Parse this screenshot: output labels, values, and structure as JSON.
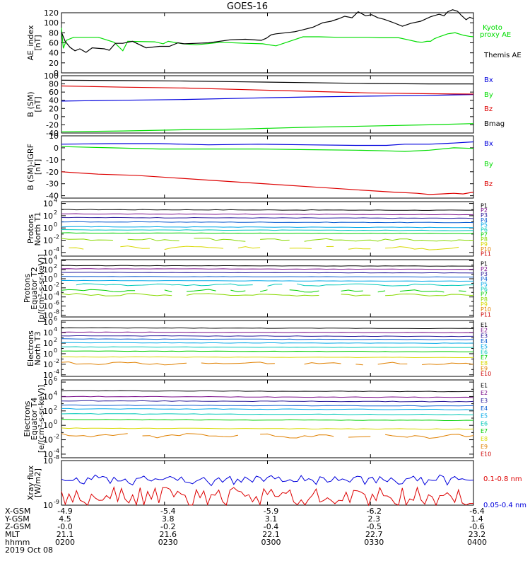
{
  "title": "GOES-16",
  "date_label": "2019 Oct 08",
  "footer": {
    "row_labels": [
      "X-GSM",
      "Y-GSM",
      "Z-GSM",
      "MLT",
      "hhmm"
    ],
    "columns": [
      [
        "-4.9",
        "4.5",
        "-0.0",
        "21.1",
        "0200"
      ],
      [
        "-5.4",
        "3.8",
        "-0.2",
        "21.6",
        "0230"
      ],
      [
        "-5.9",
        "3.1",
        "-0.4",
        "22.1",
        "0300"
      ],
      [
        "-6.2",
        "2.3",
        "-0.5",
        "22.7",
        "0330"
      ],
      [
        "-6.4",
        "1.4",
        "-0.6",
        "23.2",
        "0400"
      ]
    ]
  },
  "colors": {
    "black": "#000000",
    "green": "#00dd00",
    "blue": "#0000dd",
    "red": "#dd0000",
    "P": [
      "#000000",
      "#7a0d8a",
      "#2a1a9a",
      "#0a5cd0",
      "#00a8e8",
      "#00c8b8",
      "#00d000",
      "#88d800",
      "#d8d800",
      "#e08000",
      "#cc0000"
    ],
    "E": [
      "#000000",
      "#7a0d8a",
      "#2a1a9a",
      "#0a5cd0",
      "#00a8e8",
      "#00c8b8",
      "#00d000",
      "#d8d800",
      "#e08000",
      "#cc0000"
    ]
  },
  "chart_data": [
    {
      "type": "line",
      "ylabel": "AE_index [nT]",
      "ylim": [
        0,
        120
      ],
      "yticks": [
        "0",
        "20",
        "40",
        "60",
        "80",
        "100",
        "120"
      ],
      "x": [
        "0200",
        "0230",
        "0300",
        "0330",
        "0400"
      ],
      "series": [
        {
          "name": "Kyoto proxy AE",
          "color": "#00dd00",
          "values": [
            [
              0,
              90
            ],
            [
              3,
              49
            ],
            [
              8,
              65
            ],
            [
              20,
              71
            ],
            [
              60,
              71
            ],
            [
              86,
              61
            ],
            [
              100,
              44
            ],
            [
              108,
              63
            ],
            [
              152,
              62
            ],
            [
              166,
              58
            ],
            [
              174,
              63
            ],
            [
              198,
              58
            ],
            [
              220,
              56
            ],
            [
              260,
              61
            ],
            [
              300,
              59
            ],
            [
              328,
              58
            ],
            [
              350,
              54
            ],
            [
              372,
              63
            ],
            [
              394,
              72
            ],
            [
              420,
              72
            ],
            [
              450,
              71
            ],
            [
              500,
              71
            ],
            [
              520,
              70
            ],
            [
              550,
              70
            ],
            [
              565,
              66
            ],
            [
              580,
              62
            ],
            [
              588,
              61
            ],
            [
              596,
              63
            ],
            [
              602,
              63
            ],
            [
              608,
              68
            ],
            [
              616,
              72
            ],
            [
              630,
              78
            ],
            [
              642,
              80
            ],
            [
              656,
              75
            ],
            [
              665,
              73
            ],
            [
              672,
              72
            ]
          ]
        },
        {
          "name": "Themis AE",
          "color": "#000000",
          "values": [
            [
              0,
              81
            ],
            [
              6,
              63
            ],
            [
              14,
              51
            ],
            [
              22,
              44
            ],
            [
              30,
              48
            ],
            [
              40,
              41
            ],
            [
              50,
              50
            ],
            [
              70,
              48
            ],
            [
              78,
              45
            ],
            [
              88,
              59
            ],
            [
              100,
              59
            ],
            [
              116,
              63
            ],
            [
              138,
              50
            ],
            [
              160,
              53
            ],
            [
              176,
              53
            ],
            [
              190,
              60
            ],
            [
              200,
              58
            ],
            [
              220,
              59
            ],
            [
              240,
              60
            ],
            [
              258,
              63
            ],
            [
              276,
              66
            ],
            [
              300,
              67
            ],
            [
              326,
              65
            ],
            [
              334,
              69
            ],
            [
              342,
              76
            ],
            [
              350,
              78
            ],
            [
              366,
              80
            ],
            [
              380,
              82
            ],
            [
              394,
              86
            ],
            [
              410,
              91
            ],
            [
              426,
              100
            ],
            [
              440,
              103
            ],
            [
              452,
              108
            ],
            [
              462,
              113
            ],
            [
              474,
              110
            ],
            [
              484,
              122
            ],
            [
              496,
              114
            ],
            [
              506,
              116
            ],
            [
              516,
              110
            ],
            [
              526,
              107
            ],
            [
              540,
              101
            ],
            [
              556,
              93
            ],
            [
              570,
              99
            ],
            [
              586,
              103
            ],
            [
              602,
              112
            ],
            [
              616,
              117
            ],
            [
              624,
              114
            ],
            [
              630,
              122
            ],
            [
              638,
              126
            ],
            [
              646,
              123
            ],
            [
              652,
              115
            ],
            [
              660,
              106
            ],
            [
              666,
              111
            ],
            [
              672,
              108
            ]
          ]
        }
      ]
    },
    {
      "type": "line",
      "ylabel": "B (SM) [nT]",
      "ylim": [
        -40,
        100
      ],
      "yticks": [
        "-40",
        "-20",
        "0",
        "20",
        "40",
        "60",
        "80",
        "100"
      ],
      "series": [
        {
          "name": "Bx",
          "color": "#0000dd",
          "values": [
            [
              0,
              38
            ],
            [
              100,
              40
            ],
            [
              200,
              42
            ],
            [
              300,
              45
            ],
            [
              400,
              48
            ],
            [
              500,
              50
            ],
            [
              600,
              52
            ],
            [
              672,
              54
            ]
          ]
        },
        {
          "name": "By",
          "color": "#00dd00",
          "values": [
            [
              0,
              -37
            ],
            [
              100,
              -35
            ],
            [
              200,
              -32
            ],
            [
              300,
              -30
            ],
            [
              400,
              -26
            ],
            [
              500,
              -23
            ],
            [
              600,
              -20
            ],
            [
              672,
              -17
            ]
          ]
        },
        {
          "name": "Bz",
          "color": "#dd0000",
          "values": [
            [
              0,
              75
            ],
            [
              100,
              72
            ],
            [
              200,
              70
            ],
            [
              300,
              66
            ],
            [
              400,
              62
            ],
            [
              500,
              58
            ],
            [
              600,
              56
            ],
            [
              672,
              55
            ]
          ]
        },
        {
          "name": "Bmag",
          "color": "#000000",
          "values": [
            [
              0,
              89
            ],
            [
              100,
              88
            ],
            [
              200,
              87
            ],
            [
              300,
              85
            ],
            [
              400,
              83
            ],
            [
              500,
              81
            ],
            [
              600,
              80
            ],
            [
              672,
              80
            ]
          ]
        }
      ]
    },
    {
      "type": "line",
      "ylabel": "B (SM)-IGRF [nT]",
      "ylim": [
        -42,
        10
      ],
      "yticks": [
        "-40",
        "-30",
        "-20",
        "-10",
        "0",
        "10"
      ],
      "series": [
        {
          "name": "Bx",
          "color": "#0000dd",
          "values": [
            [
              0,
              3
            ],
            [
              80,
              3.5
            ],
            [
              160,
              3.5
            ],
            [
              240,
              2.5
            ],
            [
              320,
              3
            ],
            [
              400,
              2.5
            ],
            [
              480,
              2
            ],
            [
              530,
              2
            ],
            [
              560,
              3
            ],
            [
              600,
              3
            ],
            [
              640,
              4
            ],
            [
              672,
              5
            ]
          ]
        },
        {
          "name": "By",
          "color": "#00dd00",
          "values": [
            [
              0,
              1
            ],
            [
              80,
              0
            ],
            [
              160,
              -1
            ],
            [
              240,
              -1
            ],
            [
              320,
              -1
            ],
            [
              400,
              -1.5
            ],
            [
              480,
              -2
            ],
            [
              530,
              -2.5
            ],
            [
              560,
              -3
            ],
            [
              600,
              -2
            ],
            [
              640,
              0
            ],
            [
              672,
              -0.5
            ]
          ]
        },
        {
          "name": "Bz",
          "color": "#dd0000",
          "values": [
            [
              0,
              -20
            ],
            [
              60,
              -22
            ],
            [
              120,
              -23
            ],
            [
              180,
              -25
            ],
            [
              240,
              -27
            ],
            [
              300,
              -29
            ],
            [
              360,
              -31
            ],
            [
              420,
              -33
            ],
            [
              480,
              -35
            ],
            [
              540,
              -37
            ],
            [
              580,
              -38
            ],
            [
              600,
              -39
            ],
            [
              620,
              -38.5
            ],
            [
              640,
              -38
            ],
            [
              655,
              -38.5
            ],
            [
              672,
              -37
            ]
          ]
        }
      ]
    },
    {
      "type": "line",
      "yscale": "log",
      "ylabel": "Protons North T1",
      "ylim_exp": [
        -4.6,
        4.3
      ],
      "yticks": [
        [
          "10",
          "4"
        ],
        [
          "10",
          "2"
        ],
        [
          "10",
          "0"
        ],
        [
          "10",
          "-2"
        ],
        [
          "10",
          "-4"
        ]
      ],
      "tick_exps": [
        4,
        2,
        0,
        -2,
        -4
      ],
      "legend": [
        "P1",
        "P2",
        "P3",
        "P4",
        "P5",
        "P6",
        "P7",
        "P8",
        "P9",
        "P10",
        "P11"
      ],
      "levels": [
        3.0,
        2.3,
        1.7,
        1.0,
        0.2,
        -0.3,
        -0.8,
        -1.9,
        -3.2,
        null,
        null
      ]
    },
    {
      "type": "line",
      "yscale": "log",
      "ylabel": "Protons Equator T2",
      "ylabel2": "[p/(cm²-s-sr-keV)]",
      "ylim_exp": [
        -8.4,
        4.2
      ],
      "yticks": [
        [
          "10",
          "4"
        ],
        [
          "10",
          "2"
        ],
        [
          "10",
          "0"
        ],
        [
          "10",
          "-2"
        ],
        [
          "10",
          "-4"
        ],
        [
          "10",
          "-6"
        ],
        [
          "10",
          "-8"
        ]
      ],
      "tick_exps": [
        4,
        2,
        0,
        -2,
        -4,
        -6,
        -8
      ],
      "legend": [
        "P1",
        "P2",
        "P3",
        "P4",
        "P5",
        "P6",
        "P7",
        "P8",
        "P9",
        "P10",
        "P11"
      ],
      "levels": [
        2.9,
        2.2,
        1.4,
        0.5,
        -0.4,
        -1.3,
        -2.6,
        -3.5,
        null,
        null,
        null
      ]
    },
    {
      "type": "line",
      "yscale": "log",
      "ylabel": "Electrons North T3",
      "ylim_exp": [
        -4.3,
        6.3
      ],
      "yticks": [
        [
          "10",
          "6"
        ],
        [
          "10",
          "4"
        ],
        [
          "10",
          "2"
        ],
        [
          "10",
          "0"
        ],
        [
          "10",
          "-2"
        ],
        [
          "10",
          "-4"
        ]
      ],
      "tick_exps": [
        6,
        4,
        2,
        0,
        -2,
        -4
      ],
      "legend": [
        "E1",
        "E2",
        "E3",
        "E4",
        "E5",
        "E6",
        "E7",
        "E8",
        "E9",
        "E10"
      ],
      "levels": [
        4.9,
        4.1,
        3.4,
        2.8,
        2.1,
        1.3,
        0.5,
        -0.6,
        -1.8,
        null
      ]
    },
    {
      "type": "line",
      "yscale": "log",
      "ylabel": "Electrons Equator T4",
      "ylabel2": "[e/(cm²-s-sr-keV)]",
      "ylim_exp": [
        -4.5,
        6.3
      ],
      "yticks": [
        [
          "10",
          "6"
        ],
        [
          "10",
          "4"
        ],
        [
          "10",
          "2"
        ],
        [
          "10",
          "0"
        ],
        [
          "10",
          "-2"
        ],
        [
          "10",
          "-4"
        ]
      ],
      "tick_exps": [
        6,
        4,
        2,
        0,
        -2,
        -4
      ],
      "legend": [
        "E1",
        "E2",
        "E3",
        "E4",
        "E5",
        "E6",
        "E7",
        "E8",
        "E9",
        "E10"
      ],
      "levels": [
        4.8,
        4.0,
        3.4,
        2.8,
        2.3,
        1.6,
        0.8,
        -0.4,
        -1.4,
        null
      ]
    },
    {
      "type": "line",
      "yscale": "log",
      "ylabel": "Xray flux [W/m2]",
      "ylim_exp": [
        -9,
        -8
      ],
      "yticks": [
        [
          "10",
          "-8"
        ],
        [
          "10",
          "-9"
        ]
      ],
      "tick_exps": [
        -8,
        -9
      ],
      "series": [
        {
          "name": "0.1-0.8 nm",
          "color": "#dd0000"
        },
        {
          "name": "0.05-0.4 nm",
          "color": "#0000dd"
        }
      ]
    }
  ]
}
